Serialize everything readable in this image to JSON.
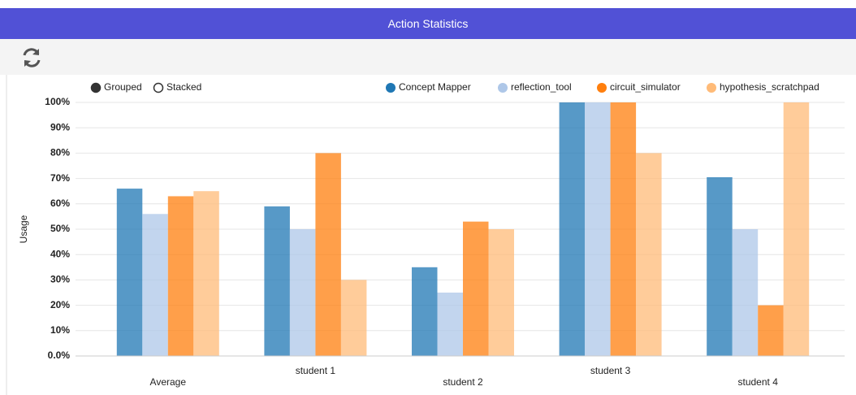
{
  "header": {
    "title": "Action Statistics"
  },
  "chart_data": {
    "type": "bar",
    "modes": [
      "Grouped",
      "Stacked"
    ],
    "y_label": "Usage",
    "categories": [
      "Average",
      "student 1",
      "student 2",
      "student 3",
      "student 4"
    ],
    "series": [
      {
        "name": "Concept Mapper",
        "color": "#1f77b4",
        "values": [
          66,
          59,
          35,
          100,
          70.5
        ]
      },
      {
        "name": "reflection_tool",
        "color": "#aec7e8",
        "values": [
          56,
          50,
          25,
          100,
          50
        ]
      },
      {
        "name": "circuit_simulator",
        "color": "#ff7f0e",
        "values": [
          63,
          80,
          53,
          100,
          20
        ]
      },
      {
        "name": "hypothesis_scratchpad",
        "color": "#ffbb78",
        "values": [
          65,
          30,
          50,
          80,
          100
        ]
      }
    ],
    "ylim": [
      0,
      100
    ],
    "yticks": [
      {
        "value": 0,
        "label": "0.0%"
      },
      {
        "value": 10,
        "label": "10%"
      },
      {
        "value": 20,
        "label": "20%"
      },
      {
        "value": 30,
        "label": "30%"
      },
      {
        "value": 40,
        "label": "40%"
      },
      {
        "value": 50,
        "label": "50%"
      },
      {
        "value": 60,
        "label": "60%"
      },
      {
        "value": 70,
        "label": "70%"
      },
      {
        "value": 80,
        "label": "80%"
      },
      {
        "value": 90,
        "label": "90%"
      },
      {
        "value": 100,
        "label": "100%"
      }
    ],
    "grid": true
  }
}
